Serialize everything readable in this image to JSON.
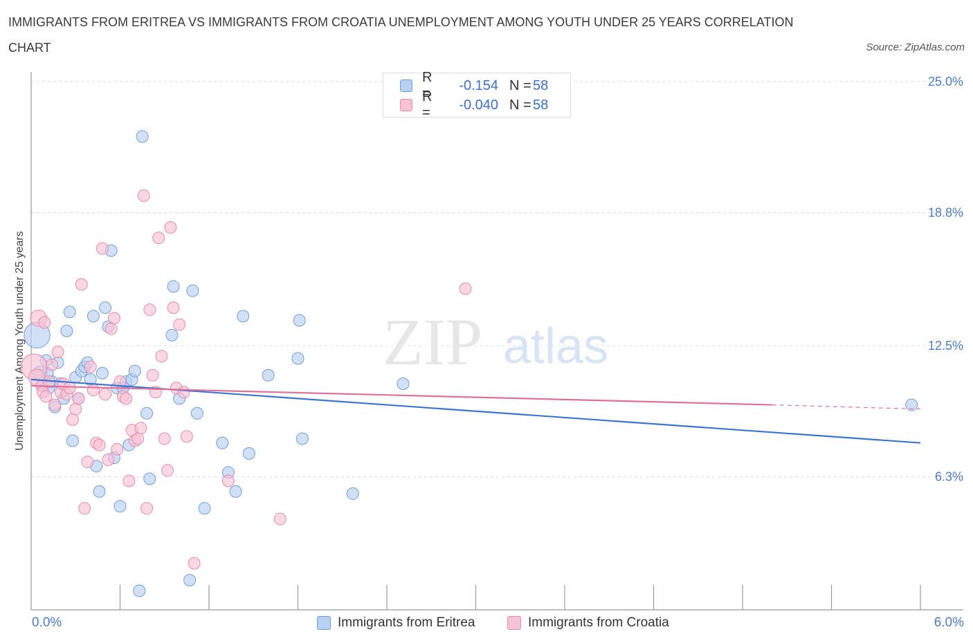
{
  "title": "IMMIGRANTS FROM ERITREA VS IMMIGRANTS FROM CROATIA UNEMPLOYMENT AMONG YOUTH UNDER 25 YEARS CORRELATION CHART",
  "source": "Source: ZipAtlas.com",
  "watermark": {
    "zip": "ZIP",
    "atlas": "atlas"
  },
  "legend": {
    "rows": [
      {
        "r_label": "R =",
        "r_value": "-0.154",
        "n_label": "N =",
        "n_value": "58"
      },
      {
        "r_label": "R =",
        "r_value": "-0.040",
        "n_label": "N =",
        "n_value": "58"
      }
    ]
  },
  "colors": {
    "eritrea_fill": "#b8d0f2",
    "eritrea_stroke": "#6e9fdc",
    "eritrea_line": "#3a74d0",
    "croatia_fill": "#f7c3d4",
    "croatia_stroke": "#e88aaa",
    "croatia_line": "#e0709a",
    "grid": "#dcdcdc",
    "tick_label": "#4a7ccc"
  },
  "chart_data": {
    "type": "scatter",
    "title": "IMMIGRANTS FROM ERITREA VS IMMIGRANTS FROM CROATIA UNEMPLOYMENT AMONG YOUTH UNDER 25 YEARS CORRELATION CHART",
    "xlabel": "",
    "ylabel": "Unemployment Among Youth under 25 years",
    "xlim": [
      0,
      6
    ],
    "ylim": [
      0,
      25
    ],
    "x_tick_labels": [
      "0.0%",
      "6.0%"
    ],
    "y_ticks": [
      6.3,
      12.5,
      18.8,
      25.0
    ],
    "y_tick_labels": [
      "6.3%",
      "12.5%",
      "18.8%",
      "25.0%"
    ],
    "series": [
      {
        "name": "Immigrants from Eritrea",
        "trend": {
          "x0": 0.0,
          "y0": 10.9,
          "x1": 6.0,
          "y1": 7.9
        },
        "points": [
          [
            0.04,
            13.0,
            2.2
          ],
          [
            0.06,
            11.2,
            1.2
          ],
          [
            0.08,
            10.6,
            1
          ],
          [
            0.1,
            11.8,
            1
          ],
          [
            0.12,
            10.5,
            1
          ],
          [
            0.14,
            10.8,
            1
          ],
          [
            0.16,
            9.6,
            1
          ],
          [
            0.18,
            11.7,
            1
          ],
          [
            0.2,
            10.7,
            1
          ],
          [
            0.22,
            10.0,
            1
          ],
          [
            0.24,
            13.2,
            1
          ],
          [
            0.26,
            14.1,
            1
          ],
          [
            0.28,
            8.0,
            1
          ],
          [
            0.3,
            11.0,
            1
          ],
          [
            0.32,
            10.0,
            1
          ],
          [
            0.34,
            11.3,
            1
          ],
          [
            0.36,
            11.5,
            1
          ],
          [
            0.38,
            11.7,
            1
          ],
          [
            0.4,
            10.9,
            1
          ],
          [
            0.42,
            13.9,
            1
          ],
          [
            0.44,
            6.8,
            1
          ],
          [
            0.46,
            5.6,
            1
          ],
          [
            0.48,
            11.2,
            1
          ],
          [
            0.5,
            14.3,
            1
          ],
          [
            0.52,
            13.4,
            1
          ],
          [
            0.54,
            17.0,
            1
          ],
          [
            0.56,
            7.2,
            1
          ],
          [
            0.58,
            10.5,
            1
          ],
          [
            0.6,
            4.9,
            1
          ],
          [
            0.62,
            10.5,
            1
          ],
          [
            0.64,
            10.8,
            1
          ],
          [
            0.66,
            7.8,
            1
          ],
          [
            0.68,
            10.9,
            1
          ],
          [
            0.7,
            11.3,
            1
          ],
          [
            0.73,
            0.9,
            1
          ],
          [
            0.75,
            22.4,
            1
          ],
          [
            0.78,
            9.3,
            1
          ],
          [
            0.8,
            6.2,
            1
          ],
          [
            0.95,
            13.0,
            1
          ],
          [
            0.96,
            15.3,
            1
          ],
          [
            1.0,
            10.0,
            1
          ],
          [
            1.07,
            1.4,
            1
          ],
          [
            1.09,
            15.1,
            1
          ],
          [
            1.12,
            9.3,
            1
          ],
          [
            1.17,
            4.8,
            1
          ],
          [
            1.29,
            7.9,
            1
          ],
          [
            1.33,
            6.5,
            1
          ],
          [
            1.38,
            5.6,
            1
          ],
          [
            1.43,
            13.9,
            1
          ],
          [
            1.47,
            7.4,
            1
          ],
          [
            1.6,
            11.1,
            1
          ],
          [
            1.8,
            11.9,
            1
          ],
          [
            1.81,
            13.7,
            1
          ],
          [
            1.83,
            8.1,
            1
          ],
          [
            2.17,
            5.5,
            1
          ],
          [
            2.51,
            10.7,
            1
          ],
          [
            5.94,
            9.7,
            1
          ],
          [
            0.11,
            11.2,
            1
          ]
        ]
      },
      {
        "name": "Immigrants from Croatia",
        "trend": {
          "x0": 0.0,
          "y0": 10.6,
          "x1": 5.0,
          "y1": 9.7,
          "dash_to_x": 6.0,
          "dash_to_y": 9.5
        },
        "points": [
          [
            0.02,
            11.5,
            2.2
          ],
          [
            0.04,
            11.0,
            1.4
          ],
          [
            0.05,
            13.8,
            1.4
          ],
          [
            0.07,
            10.6,
            1
          ],
          [
            0.08,
            10.3,
            1
          ],
          [
            0.09,
            13.6,
            1
          ],
          [
            0.1,
            10.1,
            1
          ],
          [
            0.12,
            10.8,
            1
          ],
          [
            0.14,
            11.6,
            1
          ],
          [
            0.16,
            9.7,
            1
          ],
          [
            0.18,
            12.2,
            1
          ],
          [
            0.2,
            10.3,
            1
          ],
          [
            0.22,
            10.7,
            1
          ],
          [
            0.24,
            10.2,
            1
          ],
          [
            0.26,
            10.5,
            1
          ],
          [
            0.28,
            9.0,
            1
          ],
          [
            0.3,
            9.5,
            1
          ],
          [
            0.32,
            10.0,
            1
          ],
          [
            0.34,
            15.4,
            1
          ],
          [
            0.36,
            4.8,
            1
          ],
          [
            0.38,
            7.0,
            1
          ],
          [
            0.4,
            11.5,
            1
          ],
          [
            0.42,
            10.4,
            1
          ],
          [
            0.44,
            7.9,
            1
          ],
          [
            0.46,
            7.8,
            1
          ],
          [
            0.48,
            17.1,
            1
          ],
          [
            0.5,
            10.2,
            1
          ],
          [
            0.52,
            7.1,
            1
          ],
          [
            0.54,
            13.3,
            1
          ],
          [
            0.56,
            13.8,
            1
          ],
          [
            0.58,
            7.6,
            1
          ],
          [
            0.6,
            10.8,
            1
          ],
          [
            0.62,
            10.1,
            1
          ],
          [
            0.64,
            10.0,
            1
          ],
          [
            0.66,
            6.1,
            1
          ],
          [
            0.68,
            8.5,
            1
          ],
          [
            0.7,
            8.0,
            1
          ],
          [
            0.72,
            8.1,
            1
          ],
          [
            0.74,
            8.6,
            1
          ],
          [
            0.76,
            19.6,
            1
          ],
          [
            0.78,
            4.8,
            1
          ],
          [
            0.8,
            14.2,
            1
          ],
          [
            0.82,
            11.1,
            1
          ],
          [
            0.84,
            10.3,
            1
          ],
          [
            0.86,
            17.6,
            1
          ],
          [
            0.88,
            12.0,
            1
          ],
          [
            0.9,
            8.1,
            1
          ],
          [
            0.92,
            6.6,
            1
          ],
          [
            0.94,
            18.1,
            1
          ],
          [
            0.96,
            14.3,
            1
          ],
          [
            0.98,
            10.5,
            1
          ],
          [
            1.0,
            13.5,
            1
          ],
          [
            1.03,
            10.3,
            1
          ],
          [
            1.05,
            8.2,
            1
          ],
          [
            1.1,
            2.2,
            1
          ],
          [
            1.33,
            6.1,
            1
          ],
          [
            1.68,
            4.3,
            1
          ],
          [
            2.93,
            15.2,
            1
          ]
        ]
      }
    ]
  },
  "bottom_legend": {
    "eritrea": "Immigrants from Eritrea",
    "croatia": "Immigrants from Croatia"
  },
  "x_axis_labels": {
    "left": "0.0%",
    "right": "6.0%"
  }
}
